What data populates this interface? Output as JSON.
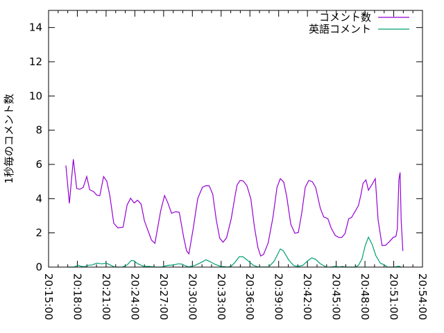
{
  "chart_data": {
    "type": "line",
    "title": "",
    "xlabel": "",
    "ylabel": "1秒毎のコメント数",
    "x_unit": "minutes after 20:15:00",
    "xlim": [
      0,
      39
    ],
    "ylim": [
      0,
      15
    ],
    "grid": false,
    "legend_placement": "top-right",
    "x_ticks": [
      {
        "value": 0,
        "label": "20:15:00"
      },
      {
        "value": 3,
        "label": "20:18:00"
      },
      {
        "value": 6,
        "label": "20:21:00"
      },
      {
        "value": 9,
        "label": "20:24:00"
      },
      {
        "value": 12,
        "label": "20:27:00"
      },
      {
        "value": 15,
        "label": "20:30:00"
      },
      {
        "value": 18,
        "label": "20:33:00"
      },
      {
        "value": 21,
        "label": "20:36:00"
      },
      {
        "value": 24,
        "label": "20:39:00"
      },
      {
        "value": 27,
        "label": "20:42:00"
      },
      {
        "value": 30,
        "label": "20:45:00"
      },
      {
        "value": 33,
        "label": "20:48:00"
      },
      {
        "value": 36,
        "label": "20:51:00"
      },
      {
        "value": 39,
        "label": "20:54:00"
      }
    ],
    "y_ticks": [
      {
        "value": 0,
        "label": "0"
      },
      {
        "value": 2,
        "label": "2"
      },
      {
        "value": 4,
        "label": "4"
      },
      {
        "value": 6,
        "label": "6"
      },
      {
        "value": 8,
        "label": "8"
      },
      {
        "value": 10,
        "label": "10"
      },
      {
        "value": 12,
        "label": "12"
      },
      {
        "value": 14,
        "label": "14"
      }
    ],
    "series": [
      {
        "name": "コメント数",
        "color": "#9400d3",
        "points": [
          [
            1.81,
            5.94
          ],
          [
            2.17,
            3.72
          ],
          [
            2.58,
            6.3
          ],
          [
            2.94,
            4.59
          ],
          [
            3.26,
            4.55
          ],
          [
            3.62,
            4.66
          ],
          [
            3.98,
            5.29
          ],
          [
            4.29,
            4.52
          ],
          [
            4.7,
            4.41
          ],
          [
            5.02,
            4.21
          ],
          [
            5.35,
            4.17
          ],
          [
            5.74,
            5.29
          ],
          [
            6.08,
            5.02
          ],
          [
            6.39,
            4.18
          ],
          [
            6.8,
            2.56
          ],
          [
            7.23,
            2.29
          ],
          [
            7.77,
            2.33
          ],
          [
            8.2,
            3.64
          ],
          [
            8.56,
            4.02
          ],
          [
            8.92,
            3.75
          ],
          [
            9.28,
            3.91
          ],
          [
            9.65,
            3.68
          ],
          [
            10.0,
            2.7
          ],
          [
            10.73,
            1.58
          ],
          [
            11.09,
            1.39
          ],
          [
            11.7,
            3.31
          ],
          [
            12.1,
            4.18
          ],
          [
            12.42,
            3.78
          ],
          [
            12.83,
            3.14
          ],
          [
            13.27,
            3.24
          ],
          [
            13.63,
            3.2
          ],
          [
            14.11,
            1.69
          ],
          [
            14.4,
            0.94
          ],
          [
            14.64,
            0.78
          ],
          [
            15.08,
            2.23
          ],
          [
            15.56,
            4.0
          ],
          [
            16.04,
            4.66
          ],
          [
            16.4,
            4.76
          ],
          [
            16.76,
            4.75
          ],
          [
            17.13,
            4.25
          ],
          [
            17.49,
            2.77
          ],
          [
            17.85,
            1.69
          ],
          [
            18.2,
            1.46
          ],
          [
            18.57,
            1.71
          ],
          [
            19.05,
            2.83
          ],
          [
            19.48,
            4.25
          ],
          [
            19.66,
            4.79
          ],
          [
            19.97,
            5.06
          ],
          [
            20.31,
            5.03
          ],
          [
            20.69,
            4.76
          ],
          [
            21.1,
            3.98
          ],
          [
            21.47,
            2.36
          ],
          [
            21.83,
            1.15
          ],
          [
            22.12,
            0.65
          ],
          [
            22.43,
            0.74
          ],
          [
            22.91,
            1.42
          ],
          [
            23.4,
            2.9
          ],
          [
            23.83,
            4.66
          ],
          [
            24.17,
            5.17
          ],
          [
            24.53,
            4.97
          ],
          [
            24.84,
            4.12
          ],
          [
            25.27,
            2.5
          ],
          [
            25.69,
            1.98
          ],
          [
            26.05,
            2.02
          ],
          [
            26.41,
            3.17
          ],
          [
            26.77,
            4.66
          ],
          [
            27.13,
            5.06
          ],
          [
            27.5,
            5.0
          ],
          [
            27.86,
            4.66
          ],
          [
            28.34,
            3.44
          ],
          [
            28.7,
            2.93
          ],
          [
            29.13,
            2.83
          ],
          [
            29.47,
            2.29
          ],
          [
            29.9,
            1.85
          ],
          [
            30.27,
            1.73
          ],
          [
            30.58,
            1.73
          ],
          [
            30.92,
            1.96
          ],
          [
            31.31,
            2.83
          ],
          [
            31.6,
            2.9
          ],
          [
            31.96,
            3.24
          ],
          [
            32.32,
            3.6
          ],
          [
            32.56,
            4.18
          ],
          [
            32.8,
            4.9
          ],
          [
            33.1,
            5.09
          ],
          [
            33.36,
            4.49
          ],
          [
            33.77,
            4.86
          ],
          [
            34.08,
            5.17
          ],
          [
            34.37,
            2.77
          ],
          [
            34.78,
            1.26
          ],
          [
            35.17,
            1.28
          ],
          [
            35.58,
            1.51
          ],
          [
            35.94,
            1.73
          ],
          [
            36.23,
            1.79
          ],
          [
            36.37,
            2.23
          ],
          [
            36.54,
            5.13
          ],
          [
            36.66,
            5.53
          ],
          [
            36.78,
            2.7
          ],
          [
            36.95,
            0.94
          ]
        ]
      },
      {
        "name": "英語コメント",
        "color": "#009e73",
        "points": [
          [
            2.05,
            0.0
          ],
          [
            2.65,
            0.0
          ],
          [
            3.09,
            0.11
          ],
          [
            3.37,
            0.05
          ],
          [
            3.74,
            0.02
          ],
          [
            4.15,
            0.11
          ],
          [
            4.59,
            0.13
          ],
          [
            5.02,
            0.23
          ],
          [
            5.55,
            0.19
          ],
          [
            6.03,
            0.23
          ],
          [
            6.4,
            0.13
          ],
          [
            6.87,
            0.01
          ],
          [
            7.23,
            0.0
          ],
          [
            7.72,
            0.01
          ],
          [
            8.2,
            0.13
          ],
          [
            8.63,
            0.39
          ],
          [
            8.92,
            0.36
          ],
          [
            9.28,
            0.2
          ],
          [
            9.89,
            0.05
          ],
          [
            10.49,
            0.04
          ],
          [
            11.09,
            0.0
          ],
          [
            11.8,
            0.0
          ],
          [
            12.42,
            0.1
          ],
          [
            13.02,
            0.12
          ],
          [
            13.51,
            0.19
          ],
          [
            13.87,
            0.18
          ],
          [
            14.59,
            0.01
          ],
          [
            15.31,
            0.11
          ],
          [
            15.92,
            0.27
          ],
          [
            16.4,
            0.43
          ],
          [
            16.88,
            0.31
          ],
          [
            17.37,
            0.16
          ],
          [
            17.97,
            0.04
          ],
          [
            18.69,
            0.0
          ],
          [
            19.05,
            0.05
          ],
          [
            19.4,
            0.25
          ],
          [
            19.9,
            0.61
          ],
          [
            20.26,
            0.61
          ],
          [
            20.74,
            0.4
          ],
          [
            21.35,
            0.11
          ],
          [
            21.83,
            0.01
          ],
          [
            22.96,
            0.01
          ],
          [
            23.52,
            0.34
          ],
          [
            24.17,
            1.06
          ],
          [
            24.48,
            0.96
          ],
          [
            25.04,
            0.42
          ],
          [
            25.58,
            0.08
          ],
          [
            26.05,
            0.04
          ],
          [
            26.53,
            0.11
          ],
          [
            27.01,
            0.36
          ],
          [
            27.45,
            0.54
          ],
          [
            27.86,
            0.45
          ],
          [
            28.34,
            0.2
          ],
          [
            28.94,
            0.01
          ],
          [
            29.42,
            0.0
          ],
          [
            29.9,
            0.04
          ],
          [
            30.38,
            0.0
          ],
          [
            30.62,
            0.04
          ],
          [
            30.98,
            0.0
          ],
          [
            31.96,
            0.0
          ],
          [
            32.32,
            0.1
          ],
          [
            32.68,
            0.47
          ],
          [
            33.04,
            1.28
          ],
          [
            33.36,
            1.75
          ],
          [
            33.73,
            1.35
          ],
          [
            34.14,
            0.67
          ],
          [
            34.6,
            0.23
          ],
          [
            35.09,
            0.11
          ],
          [
            35.33,
            0.0
          ],
          [
            36.06,
            0.0
          ],
          [
            36.54,
            0.05
          ],
          [
            36.78,
            0.0
          ]
        ]
      }
    ]
  }
}
